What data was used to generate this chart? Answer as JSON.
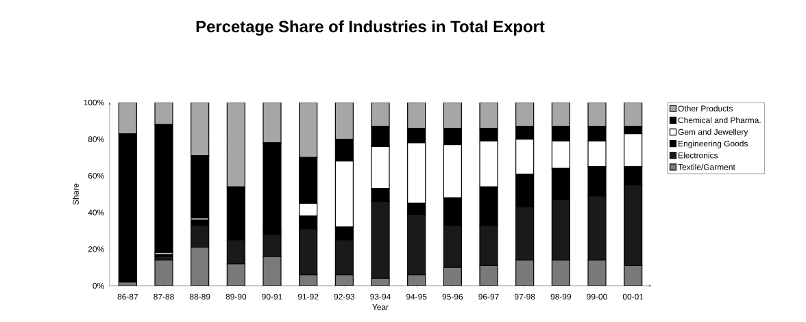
{
  "chart_data": {
    "type": "bar",
    "stacked": true,
    "title": "Percetage Share of Industries in Total Export",
    "xlabel": "Year",
    "ylabel": "Share",
    "categories": [
      "86-87",
      "87-88",
      "88-89",
      "89-90",
      "90-91",
      "91-92",
      "92-93",
      "93-94",
      "94-95",
      "95-96",
      "96-97",
      "97-98",
      "98-99",
      "99-00",
      "00-01"
    ],
    "series": [
      {
        "name": "Textile/Garment",
        "color": "#7a7a7a",
        "values": [
          2,
          14,
          21,
          12,
          16,
          6,
          6,
          4,
          6,
          10,
          11,
          14,
          14,
          14,
          11
        ]
      },
      {
        "name": "Electronics",
        "color": "#1a1a1a",
        "values": [
          0,
          2,
          12,
          13,
          12,
          25,
          19,
          42,
          33,
          23,
          22,
          29,
          33,
          35,
          44
        ]
      },
      {
        "name": "Engineering Goods",
        "color": "#000000",
        "values": [
          0,
          1,
          3,
          4,
          2,
          7,
          7,
          7,
          6,
          15,
          21,
          18,
          17,
          16,
          10
        ]
      },
      {
        "name": "Gem and Jewellery",
        "color": "#ffffff",
        "values": [
          0,
          1,
          1,
          0,
          0,
          7,
          36,
          23,
          33,
          29,
          25,
          19,
          15,
          14,
          18
        ]
      },
      {
        "name": "Chemical and Pharma.",
        "color": "#000000",
        "values": [
          81,
          70,
          34,
          25,
          48,
          25,
          12,
          11,
          8,
          9,
          7,
          7,
          8,
          8,
          4
        ]
      },
      {
        "name": "Other Products",
        "color": "#a6a6a6",
        "values": [
          17,
          12,
          29,
          46,
          22,
          30,
          20,
          13,
          14,
          14,
          14,
          13,
          13,
          13,
          13
        ]
      }
    ],
    "ylim": [
      0,
      100
    ],
    "yticks": [
      {
        "value": 0,
        "label": "0%"
      },
      {
        "value": 20,
        "label": "20%"
      },
      {
        "value": 40,
        "label": "40%"
      },
      {
        "value": 60,
        "label": "60%"
      },
      {
        "value": 80,
        "label": "80%"
      },
      {
        "value": 100,
        "label": "100%"
      }
    ],
    "legend": "right"
  }
}
